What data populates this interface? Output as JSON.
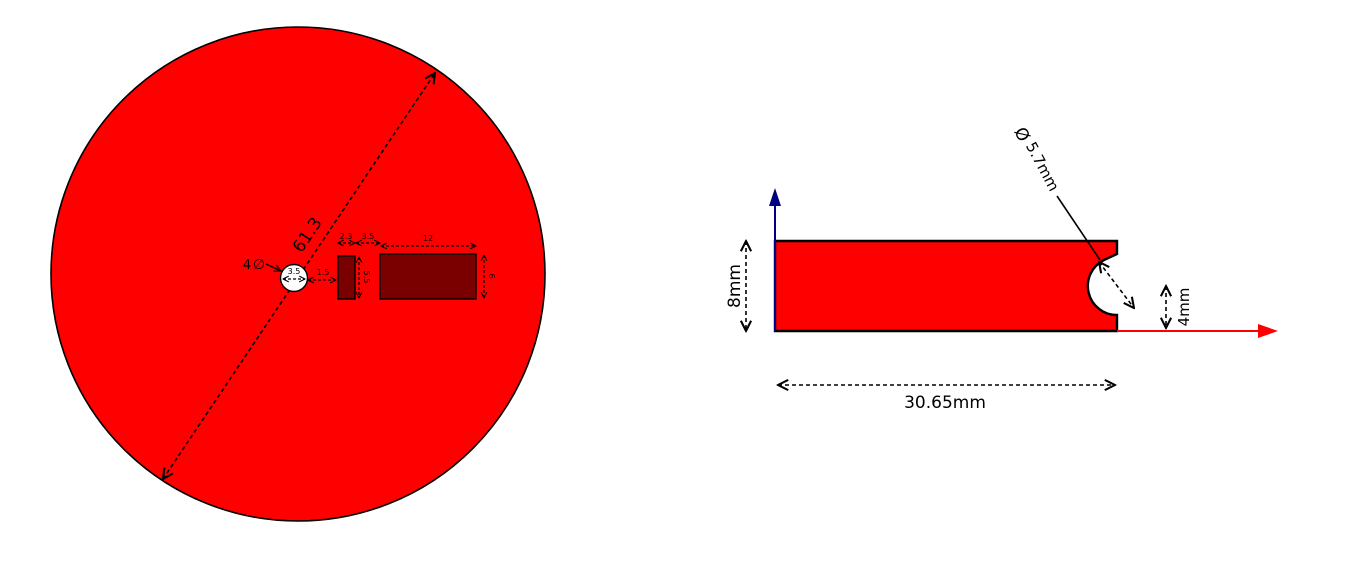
{
  "colors": {
    "part_fill": "#ff0000",
    "slot_fill": "#7a0000",
    "outline": "#000000",
    "vertical_axis": "#000080",
    "horizontal_axis": "#ff0000"
  },
  "top_view": {
    "diameter_label": "61.3",
    "hole_label": "4",
    "hole_diameter_symbol": "∅",
    "hole_inner_label": "3.5",
    "gap_label": "1.5",
    "slot1_width_label": "2.3",
    "spacing_label": "3.5",
    "slot2_width_label": "12",
    "slot1_height_label": "5.5",
    "slot2_height_label": "6"
  },
  "side_view": {
    "diameter_symbol": "Ø",
    "diameter_label": "5.7mm",
    "height_label": "8mm",
    "notch_height_label": "4mm",
    "width_label": "30.65mm"
  }
}
